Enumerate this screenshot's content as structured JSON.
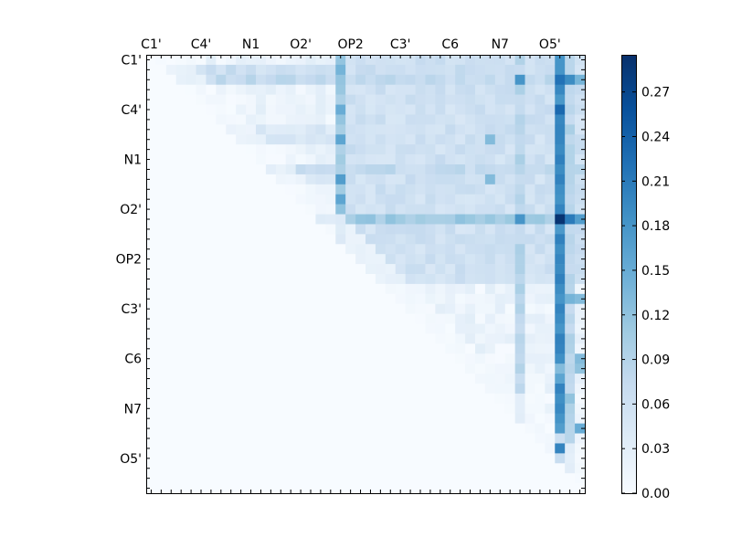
{
  "chart_data": {
    "type": "heatmap",
    "title": "",
    "size": 44,
    "x_tick_labels": [
      "C1'",
      "C4'",
      "N1",
      "O2'",
      "OP2",
      "C3'",
      "C6",
      "N7",
      "O5'"
    ],
    "y_tick_labels": [
      "C1'",
      "C4'",
      "N1",
      "O2'",
      "OP2",
      "C3'",
      "C6",
      "N7",
      "O5'"
    ],
    "tick_index_step": 5,
    "colorbar": {
      "colormap": "Blues",
      "vmin": 0.0,
      "vmax": 0.295,
      "tick_labels": [
        "0.00",
        "0.03",
        "0.06",
        "0.09",
        "0.12",
        "0.15",
        "0.18",
        "0.21",
        "0.24",
        "0.27"
      ],
      "tick_values": [
        0.0,
        0.03,
        0.06,
        0.09,
        0.12,
        0.15,
        0.18,
        0.21,
        0.24,
        0.27
      ]
    },
    "matrix_note": "upper-triangular; strongest values in column 41 near row 16 (~0.29)",
    "band_rows": [
      {
        "row": 1,
        "level": 0.09
      },
      {
        "row": 2,
        "level": 0.1
      },
      {
        "row": 7,
        "level": 0.07
      },
      {
        "row": 8,
        "level": 0.08
      },
      {
        "row": 11,
        "level": 0.1
      },
      {
        "row": 12,
        "level": 0.07
      },
      {
        "row": 16,
        "level": 0.13
      },
      {
        "row": 18,
        "level": 0.05
      },
      {
        "row": 20,
        "level": 0.06
      }
    ],
    "band_cols": [
      {
        "col": 19,
        "level": 0.13
      },
      {
        "col": 20,
        "level": 0.09
      },
      {
        "col": 37,
        "level": 0.11
      },
      {
        "col": 41,
        "level": 0.19
      },
      {
        "col": 42,
        "level": 0.11
      }
    ],
    "hot_cells": [
      {
        "row": 16,
        "col": 41,
        "value": 0.29
      },
      {
        "row": 16,
        "col": 42,
        "value": 0.21
      },
      {
        "row": 16,
        "col": 43,
        "value": 0.17
      },
      {
        "row": 2,
        "col": 41,
        "value": 0.22
      },
      {
        "row": 2,
        "col": 42,
        "value": 0.19
      },
      {
        "row": 2,
        "col": 43,
        "value": 0.14
      },
      {
        "row": 5,
        "col": 41,
        "value": 0.23
      },
      {
        "row": 7,
        "col": 41,
        "value": 0.2
      },
      {
        "row": 11,
        "col": 41,
        "value": 0.19
      },
      {
        "row": 15,
        "col": 41,
        "value": 0.2
      },
      {
        "row": 23,
        "col": 41,
        "value": 0.19
      },
      {
        "row": 24,
        "col": 41,
        "value": 0.18
      },
      {
        "row": 24,
        "col": 42,
        "value": 0.14
      },
      {
        "row": 24,
        "col": 43,
        "value": 0.13
      },
      {
        "row": 29,
        "col": 41,
        "value": 0.2
      },
      {
        "row": 32,
        "col": 41,
        "value": 0.16
      },
      {
        "row": 37,
        "col": 41,
        "value": 0.17
      },
      {
        "row": 37,
        "col": 43,
        "value": 0.15
      },
      {
        "row": 39,
        "col": 41,
        "value": 0.2
      },
      {
        "row": 2,
        "col": 37,
        "value": 0.18
      },
      {
        "row": 16,
        "col": 37,
        "value": 0.18
      },
      {
        "row": 5,
        "col": 19,
        "value": 0.15
      },
      {
        "row": 8,
        "col": 19,
        "value": 0.16
      },
      {
        "row": 12,
        "col": 19,
        "value": 0.17
      },
      {
        "row": 14,
        "col": 19,
        "value": 0.16
      },
      {
        "row": 1,
        "col": 19,
        "value": 0.14
      },
      {
        "row": 8,
        "col": 34,
        "value": 0.13
      },
      {
        "row": 12,
        "col": 34,
        "value": 0.13
      },
      {
        "row": 31,
        "col": 41,
        "value": 0.13
      },
      {
        "row": 31,
        "col": 43,
        "value": 0.12
      },
      {
        "row": 30,
        "col": 43,
        "value": 0.13
      },
      {
        "row": 34,
        "col": 42,
        "value": 0.12
      }
    ]
  }
}
